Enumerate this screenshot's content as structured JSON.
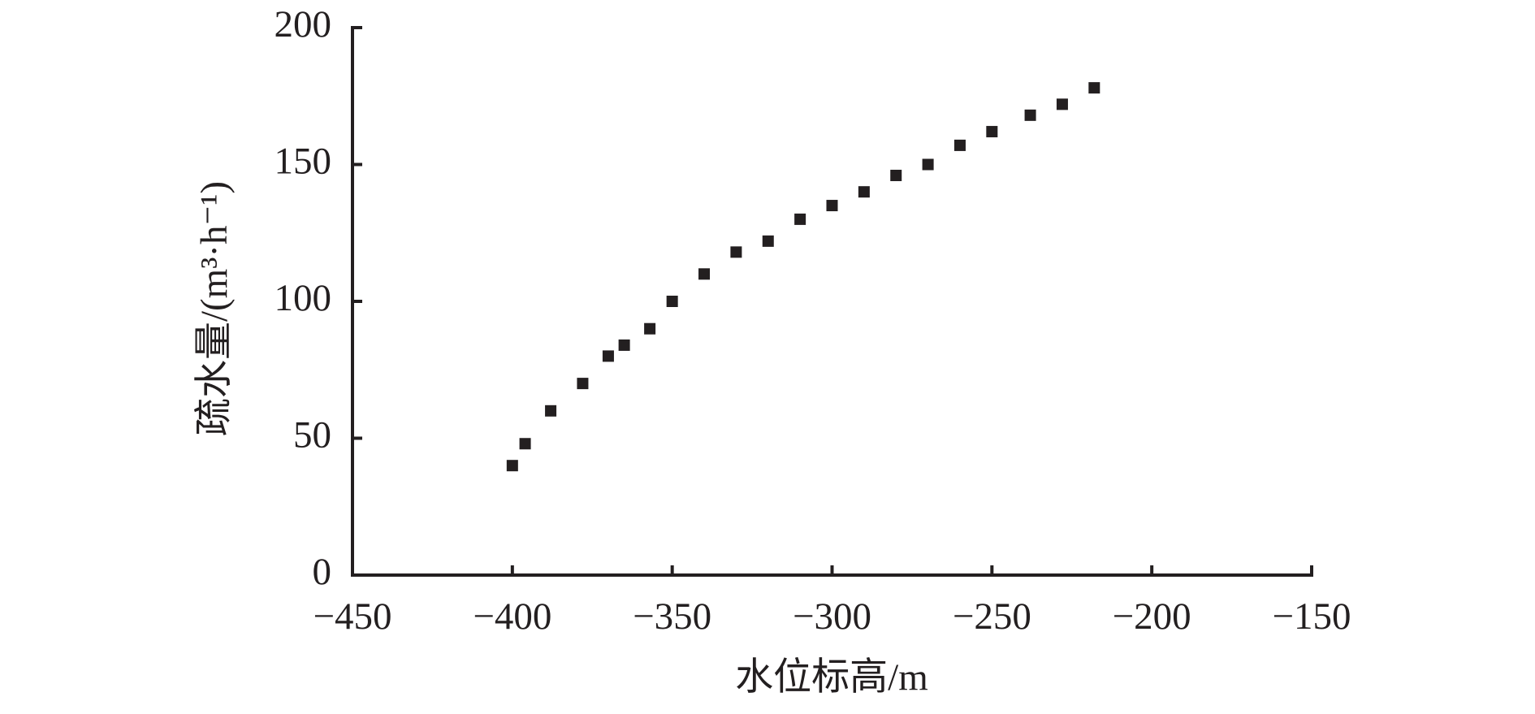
{
  "chart_data": {
    "type": "scatter",
    "xlabel": "水位标高/m",
    "ylabel": "疏水量/(m³·h⁻¹)",
    "color": "#231f20",
    "x": [
      -400,
      -396,
      -388,
      -378,
      -370,
      -365,
      -357,
      -350,
      -340,
      -330,
      -320,
      -310,
      -300,
      -290,
      -280,
      -270,
      -260,
      -250,
      -238,
      -228,
      -218
    ],
    "values": [
      40,
      48,
      60,
      70,
      80,
      84,
      90,
      100,
      110,
      118,
      122,
      130,
      135,
      140,
      146,
      150,
      157,
      162,
      168,
      172,
      178
    ],
    "xlim": [
      -450,
      -150
    ],
    "xticks": [
      {
        "value": -450,
        "label": "−450"
      },
      {
        "value": -400,
        "label": "−400"
      },
      {
        "value": -350,
        "label": "−350"
      },
      {
        "value": -300,
        "label": "−300"
      },
      {
        "value": -250,
        "label": "−250"
      },
      {
        "value": -200,
        "label": "−200"
      },
      {
        "value": -150,
        "label": "−150"
      }
    ],
    "ylim": [
      0,
      200
    ],
    "yticks": [
      0,
      50,
      100,
      150,
      200
    ]
  }
}
